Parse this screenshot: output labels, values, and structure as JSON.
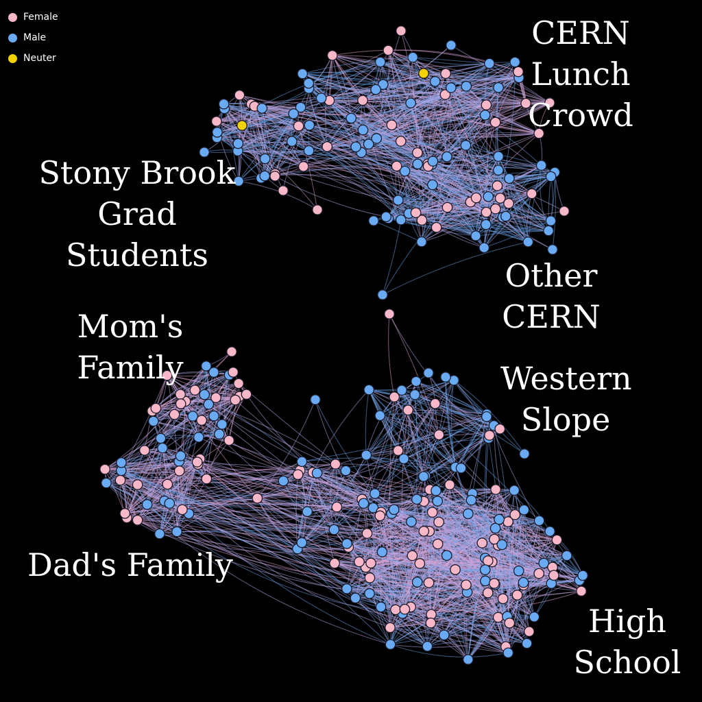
{
  "legend": {
    "items": [
      {
        "label": "Female",
        "color": "#f9b8c8"
      },
      {
        "label": "Male",
        "color": "#6aaaf2"
      },
      {
        "label": "Neuter",
        "color": "#f2d200"
      }
    ]
  },
  "labels": {
    "cern_lunch": "CERN Lunch\nCrowd",
    "stony_brook": "Stony Brook\nGrad Students",
    "other_cern": "Other\nCERN",
    "moms_family": "Mom's Family",
    "western_slope": "Western\nSlope",
    "dads_family": "Dad's Family",
    "high_school": "High\nSchool"
  },
  "colors": {
    "background": "#000000",
    "female": "#f9b8c8",
    "male": "#6aaaf2",
    "neuter": "#f2d200",
    "edge_male": "#6aa4ea",
    "edge_female": "#e0a8d8",
    "edge_mixed": "#b9a8e6",
    "node_stroke": "#1a1a2a"
  }
}
